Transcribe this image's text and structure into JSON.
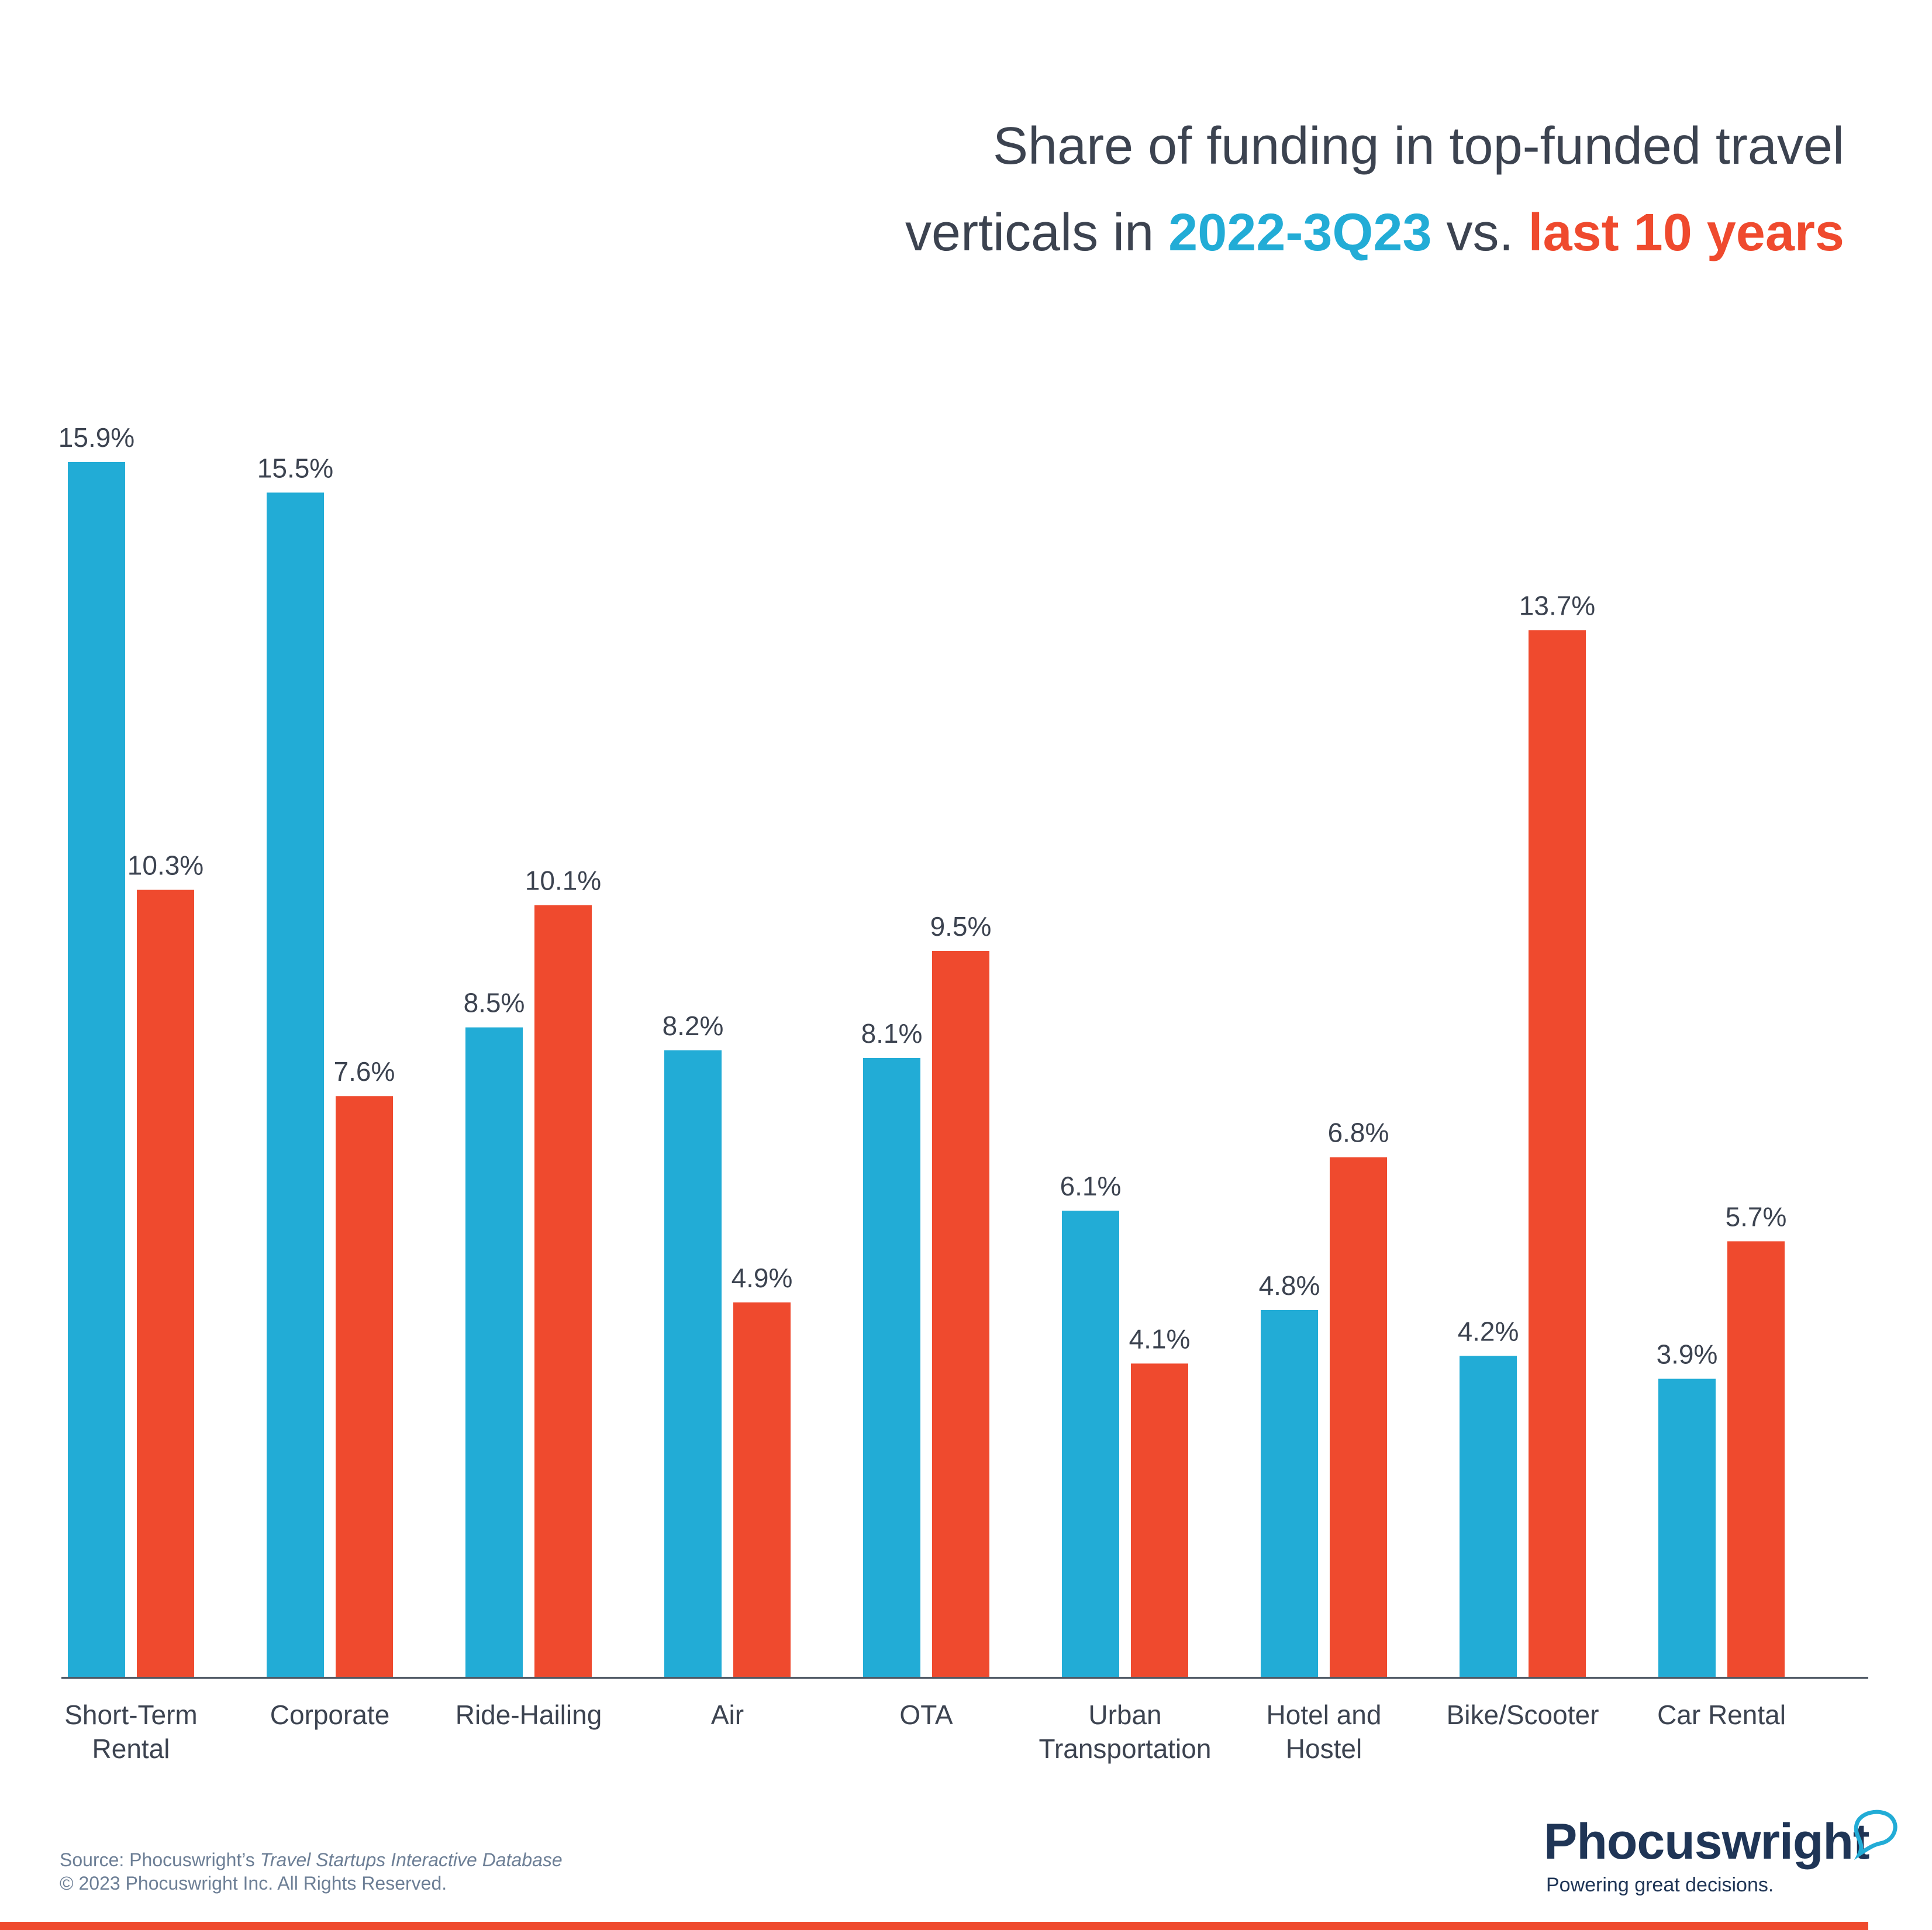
{
  "title": {
    "line1": "Share of funding in top-funded travel",
    "line2_prefix": "verticals in ",
    "series_a": "2022-3Q23",
    "middle": " vs. ",
    "series_b": "last 10 years"
  },
  "colors": {
    "series_a": "#22acd6",
    "series_b": "#ef4a2e",
    "axis": "#3a4452",
    "text": "#3c4350"
  },
  "chart_data": {
    "type": "bar",
    "categories": [
      [
        "Short-Term",
        "Rental"
      ],
      [
        "Corporate"
      ],
      [
        "Ride-Hailing"
      ],
      [
        "Air"
      ],
      [
        "OTA"
      ],
      [
        "Urban",
        "Transportation"
      ],
      [
        "Hotel and",
        "Hostel"
      ],
      [
        "Bike/Scooter"
      ],
      [
        "Car Rental"
      ]
    ],
    "series": [
      {
        "name": "2022-3Q23",
        "color": "#22acd6",
        "values": [
          15.9,
          15.5,
          8.5,
          8.2,
          8.1,
          6.1,
          4.8,
          4.2,
          3.9
        ],
        "labels": [
          "15.9%",
          "15.5%",
          "8.5%",
          "8.2%",
          "8.1%",
          "6.1%",
          "4.8%",
          "4.2%",
          "3.9%"
        ]
      },
      {
        "name": "last 10 years",
        "color": "#ef4a2e",
        "values": [
          10.3,
          7.6,
          10.1,
          4.9,
          9.5,
          4.1,
          6.8,
          13.7,
          5.7
        ],
        "labels": [
          "10.3%",
          "7.6%",
          "10.1%",
          "4.9%",
          "9.5%",
          "4.1%",
          "6.8%",
          "13.7%",
          "5.7%"
        ]
      }
    ],
    "ylim": [
      0,
      16
    ],
    "grid": false,
    "legend": "title"
  },
  "footer": {
    "source_prefix": "Source: Phocuswright’s ",
    "source_title": "Travel Startups Interactive Database",
    "copyright": "© 2023 Phocuswright Inc. All Rights Reserved."
  },
  "logo": {
    "name": "Phocuswright",
    "tagline": "Powering great decisions."
  }
}
